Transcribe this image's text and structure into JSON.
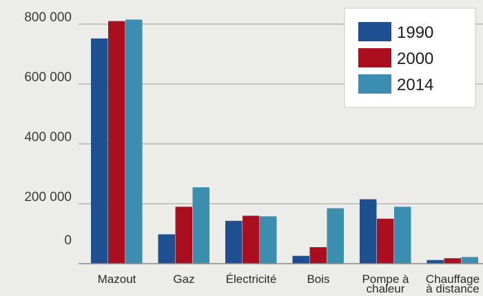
{
  "chart_data": {
    "type": "bar",
    "categories": [
      [
        "Mazout"
      ],
      [
        "Gaz"
      ],
      [
        "Électricité"
      ],
      [
        "Bois"
      ],
      [
        "Pompe à",
        "chaleur"
      ],
      [
        "Chauffage",
        "à distance"
      ]
    ],
    "series": [
      {
        "name": "1990",
        "color": "#1e4f91",
        "values": [
          752000,
          98000,
          143000,
          26000,
          215000,
          12000
        ]
      },
      {
        "name": "2000",
        "color": "#aa0f1f",
        "values": [
          810000,
          190000,
          160000,
          55000,
          150000,
          18000
        ]
      },
      {
        "name": "2014",
        "color": "#3b8eaf",
        "values": [
          815000,
          255000,
          158000,
          185000,
          190000,
          22000
        ]
      }
    ],
    "yticks": [
      {
        "value": 0,
        "label": "0"
      },
      {
        "value": 200000,
        "label": "200 000"
      },
      {
        "value": 400000,
        "label": "400 000"
      },
      {
        "value": 600000,
        "label": "600 000"
      },
      {
        "value": 800000,
        "label": "800 000"
      }
    ],
    "ylim": [
      0,
      800000
    ],
    "grid": true,
    "legend_position": "top-right"
  }
}
